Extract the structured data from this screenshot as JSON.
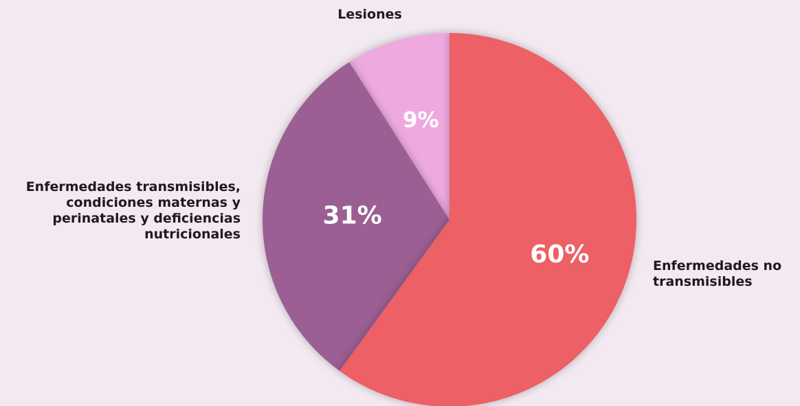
{
  "chart_data": {
    "type": "pie",
    "title": "",
    "slices": [
      {
        "name": "Enfermedades no transmisibles",
        "label_lines": [
          "Enfermedades no",
          "transmisibles"
        ],
        "value": 60,
        "value_label": "60%",
        "color": "#ec6166"
      },
      {
        "name": "Enfermedades transmisibles, condiciones maternas y perinatales y deficiencias nutricionales",
        "label_lines": [
          "Enfermedades transmisibles,",
          "condiciones maternas y",
          "perinatales y deficiencias",
          "nutricionales"
        ],
        "value": 31,
        "value_label": "31%",
        "color": "#9b5f93"
      },
      {
        "name": "Lesiones",
        "label_lines": [
          "Lesiones"
        ],
        "value": 9,
        "value_label": "9%",
        "color": "#eeaadf"
      }
    ],
    "start": "top",
    "direction": "clockwise"
  },
  "colors": {
    "background": "#f3eaf1",
    "label_text": "#1e1a1d",
    "value_text": "#ffffff"
  }
}
